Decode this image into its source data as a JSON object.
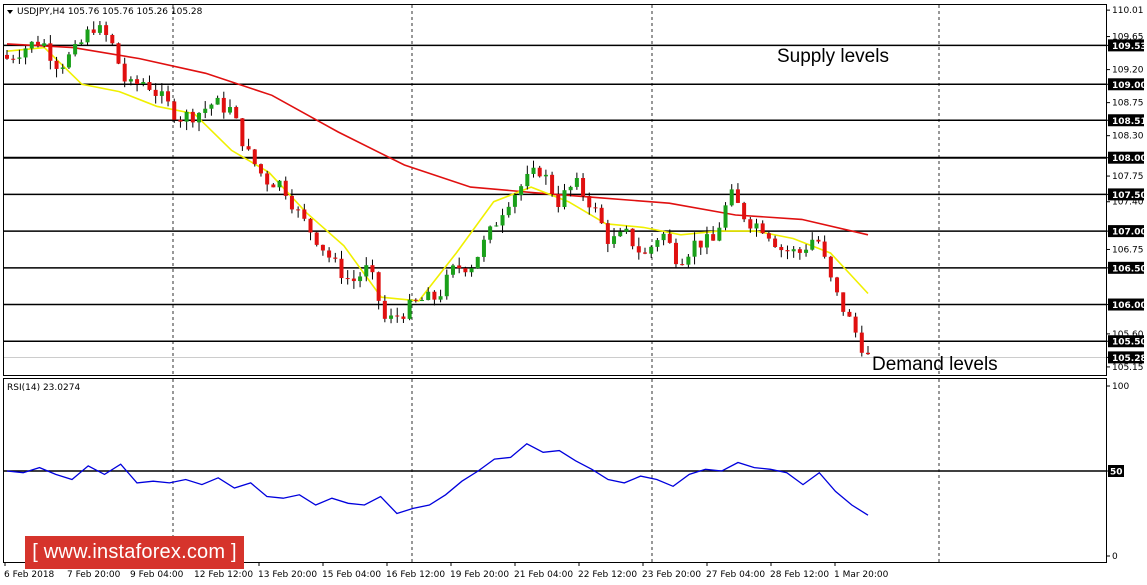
{
  "header": {
    "symbol_label": "USDJPY,H4  105.76 105.76 105.26 105.28"
  },
  "rsi_label": "RSI(14) 23.0274",
  "brand": "[ www.instaforex.com ]",
  "annotations": {
    "supply": "Supply levels",
    "demand": "Demand levels"
  },
  "colors": {
    "bull": "#1aa01a",
    "bear": "#e01010",
    "ma_slow": "#e01010",
    "ma_fast": "#f0f000",
    "rsi": "#0000dd",
    "brand": "#d6342c"
  },
  "chart_data": [
    {
      "type": "candlestick",
      "symbol": "USDJPY",
      "timeframe": "H4",
      "ylim": [
        105.04,
        110.08
      ],
      "y_ticks": [
        "110.01",
        "109.65",
        "109.53",
        "109.20",
        "109.00",
        "108.75",
        "108.51",
        "108.30",
        "108.00",
        "107.75",
        "107.50",
        "107.40",
        "107.00",
        "106.75",
        "106.50",
        "106.00",
        "105.60",
        "105.50",
        "105.28",
        "105.15"
      ],
      "levels": [
        109.53,
        109.0,
        108.51,
        108.0,
        107.5,
        107.0,
        106.5,
        106.0,
        105.5
      ],
      "level_labels": [
        "109.53",
        "109.00",
        "108.51",
        "108.00",
        "107.50",
        "107.00",
        "106.50",
        "106.00",
        "105.50"
      ],
      "current_price_label": "105.28",
      "x_ticks": [
        "6 Feb 2018",
        "7 Feb 20:00",
        "9 Feb 04:00",
        "12 Feb 12:00",
        "13 Feb 20:00",
        "15 Feb 04:00",
        "16 Feb 12:00",
        "19 Feb 20:00",
        "21 Feb 04:00",
        "22 Feb 12:00",
        "23 Feb 20:00",
        "27 Feb 04:00",
        "28 Feb 12:00",
        "1 Mar 20:00"
      ],
      "close_path": [
        109.35,
        109.5,
        109.6,
        109.25,
        109.45,
        109.8,
        109.6,
        108.95,
        109.05,
        108.8,
        108.55,
        108.6,
        108.75,
        108.65,
        108.05,
        107.7,
        107.65,
        107.2,
        106.9,
        106.55,
        106.3,
        106.5,
        105.75,
        105.9,
        106.05,
        106.1,
        106.5,
        106.55,
        106.95,
        107.4,
        107.65,
        107.85,
        107.4,
        107.65,
        107.35,
        106.85,
        106.95,
        106.65,
        107.0,
        106.6,
        106.85,
        106.85,
        107.5,
        107.15,
        107.05,
        106.75,
        106.7,
        106.95,
        106.2,
        105.75,
        105.28
      ],
      "sma_fast_path": [
        109.45,
        109.5,
        109.0,
        108.9,
        108.7,
        108.6,
        108.1,
        107.8,
        107.25,
        106.8,
        106.1,
        106.05,
        106.7,
        107.4,
        107.6,
        107.4,
        107.1,
        107.05,
        106.95,
        107.0,
        107.0,
        106.9,
        106.7,
        106.15
      ],
      "sma_slow_path": [
        109.55,
        109.5,
        109.35,
        109.15,
        108.85,
        108.35,
        107.9,
        107.6,
        107.52,
        107.45,
        107.38,
        107.22,
        107.16,
        106.95
      ]
    },
    {
      "type": "line",
      "name": "RSI(14)",
      "ylim": [
        0,
        100
      ],
      "y_ticks": [
        "100",
        "50",
        "0"
      ],
      "reference_level": 50,
      "values": [
        50,
        49,
        52,
        48,
        45,
        53,
        48,
        54,
        43,
        44,
        43,
        45,
        42,
        46,
        40,
        43,
        35,
        34,
        36,
        30,
        34,
        31,
        30,
        35,
        25,
        28,
        30,
        36,
        44,
        50,
        57,
        58,
        66,
        61,
        62,
        56,
        51,
        45,
        43,
        47,
        45,
        41,
        48,
        51,
        50,
        55,
        52,
        51,
        49,
        42,
        49,
        38,
        30,
        24
      ]
    }
  ]
}
